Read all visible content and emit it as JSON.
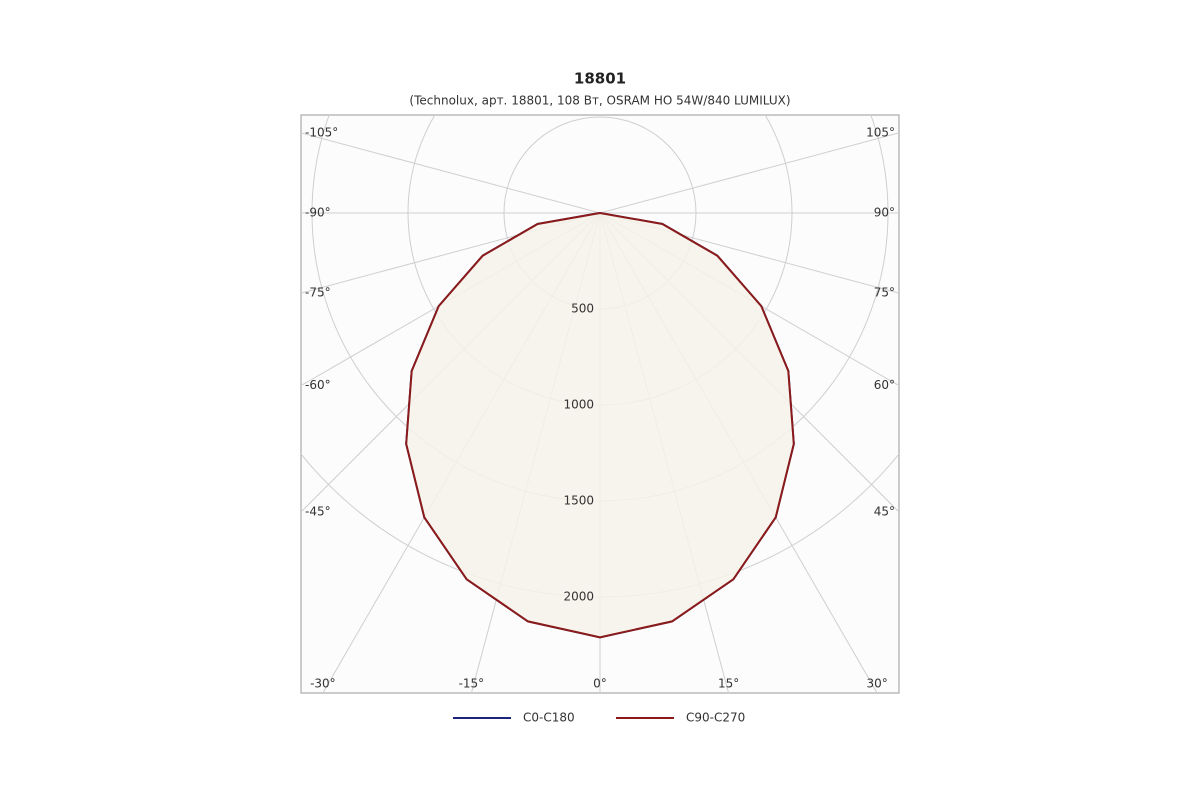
{
  "chart_data": {
    "type": "polar",
    "title": "18801",
    "subtitle": "(Technolux, арт. 18801, 108 Вт, OSRAM HO 54W/840 LUMILUX)",
    "x": [
      -90,
      -80,
      -70,
      -60,
      -50,
      -40,
      -30,
      -20,
      -10,
      0,
      10,
      20,
      30,
      40,
      50,
      60,
      70,
      80,
      90
    ],
    "series": [
      {
        "name": "C0-C180",
        "color": "#1a237e",
        "values": [
          0,
          330,
          650,
          970,
          1280,
          1570,
          1830,
          2030,
          2160,
          2210,
          2160,
          2030,
          1830,
          1570,
          1280,
          970,
          650,
          330,
          0
        ]
      },
      {
        "name": "C90-C270",
        "color": "#8b1a1a",
        "values": [
          0,
          330,
          650,
          970,
          1280,
          1570,
          1830,
          2030,
          2160,
          2210,
          2160,
          2030,
          1830,
          1570,
          1280,
          970,
          650,
          330,
          0
        ]
      }
    ],
    "rlim": [
      0,
      2500
    ],
    "rticks": [
      500,
      1000,
      1500,
      2000
    ],
    "xticks": [
      {
        "value": -105,
        "label": "-105°"
      },
      {
        "value": -90,
        "label": "-90°"
      },
      {
        "value": -75,
        "label": "-75°"
      },
      {
        "value": -60,
        "label": "-60°"
      },
      {
        "value": -45,
        "label": "-45°"
      },
      {
        "value": -30,
        "label": "-30°"
      },
      {
        "value": -15,
        "label": "-15°"
      },
      {
        "value": 0,
        "label": "0°"
      },
      {
        "value": 15,
        "label": "15°"
      },
      {
        "value": 30,
        "label": "30°"
      },
      {
        "value": 45,
        "label": "45°"
      },
      {
        "value": 60,
        "label": "60°"
      },
      {
        "value": 75,
        "label": "75°"
      },
      {
        "value": 90,
        "label": "90°"
      },
      {
        "value": 105,
        "label": "105°"
      }
    ],
    "fill": "#f6f2ea",
    "grid": true
  }
}
